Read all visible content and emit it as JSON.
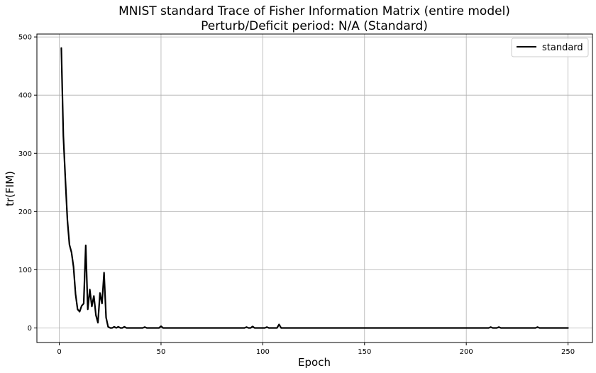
{
  "chart_data": {
    "type": "line",
    "title": "MNIST standard Trace of Fisher Information Matrix (entire model)",
    "subtitle": "Perturb/Deficit period: N/A (Standard)",
    "xlabel": "Epoch",
    "ylabel": "tr(FIM)",
    "xlim": [
      -11,
      262
    ],
    "ylim": [
      -25,
      505
    ],
    "xticks": [
      0,
      50,
      100,
      150,
      200,
      250
    ],
    "yticks": [
      0,
      100,
      200,
      300,
      400,
      500
    ],
    "grid": true,
    "legend_position": "top-right",
    "colors": {
      "series": "#000000",
      "grid": "#b0b0b0",
      "axis": "#000000"
    },
    "series": [
      {
        "name": "standard",
        "points": [
          [
            1,
            481
          ],
          [
            2,
            330
          ],
          [
            3,
            255
          ],
          [
            4,
            185
          ],
          [
            5,
            143
          ],
          [
            6,
            130
          ],
          [
            7,
            105
          ],
          [
            8,
            58
          ],
          [
            9,
            32
          ],
          [
            10,
            28
          ],
          [
            11,
            38
          ],
          [
            12,
            42
          ],
          [
            13,
            142
          ],
          [
            14,
            32
          ],
          [
            15,
            66
          ],
          [
            16,
            37
          ],
          [
            17,
            55
          ],
          [
            18,
            22
          ],
          [
            19,
            9
          ],
          [
            20,
            60
          ],
          [
            21,
            42
          ],
          [
            22,
            95
          ],
          [
            23,
            18
          ],
          [
            24,
            2
          ],
          [
            25,
            0
          ],
          [
            26,
            0
          ],
          [
            27,
            2
          ],
          [
            28,
            0
          ],
          [
            29,
            2
          ],
          [
            30,
            0
          ],
          [
            31,
            0
          ],
          [
            32,
            2
          ],
          [
            33,
            0
          ],
          [
            34,
            0
          ],
          [
            35,
            0
          ],
          [
            40,
            0
          ],
          [
            41,
            0
          ],
          [
            42,
            1.5
          ],
          [
            43,
            0
          ],
          [
            48,
            0
          ],
          [
            49,
            0
          ],
          [
            50,
            3
          ],
          [
            51,
            0
          ],
          [
            90,
            0
          ],
          [
            91,
            0
          ],
          [
            92,
            1.5
          ],
          [
            93,
            0
          ],
          [
            94,
            0
          ],
          [
            95,
            2.5
          ],
          [
            96,
            0
          ],
          [
            100,
            0
          ],
          [
            101,
            0
          ],
          [
            102,
            1.5
          ],
          [
            103,
            0
          ],
          [
            106,
            0
          ],
          [
            107,
            0
          ],
          [
            108,
            6
          ],
          [
            109,
            0
          ],
          [
            110,
            0
          ],
          [
            211,
            0
          ],
          [
            212,
            1.5
          ],
          [
            213,
            0
          ],
          [
            214,
            0
          ],
          [
            215,
            0
          ],
          [
            216,
            1.5
          ],
          [
            217,
            0
          ],
          [
            234,
            0
          ],
          [
            235,
            1.5
          ],
          [
            236,
            0
          ],
          [
            250,
            0
          ]
        ]
      }
    ]
  }
}
